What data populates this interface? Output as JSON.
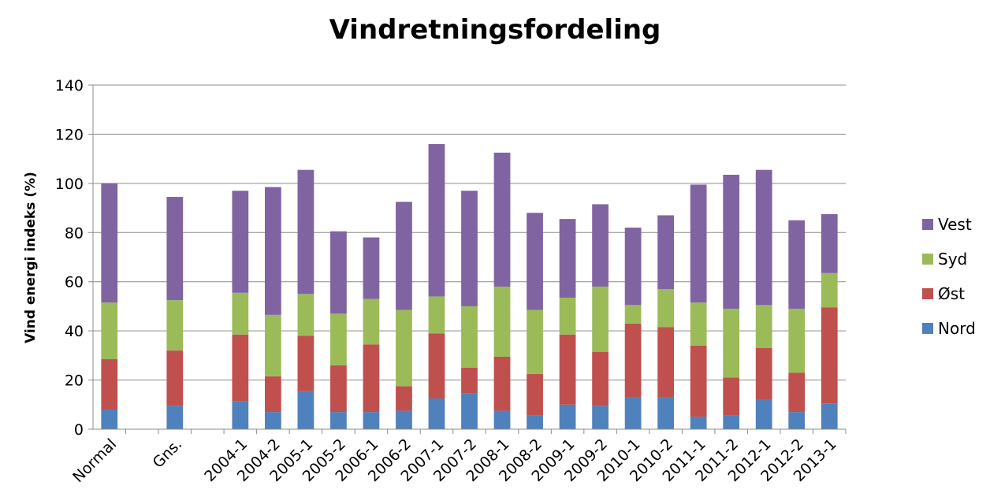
{
  "chart_data": {
    "type": "bar",
    "stacked": true,
    "title": "Vindretningsfordeling",
    "xlabel": "",
    "ylabel": "Vind energi indeks (%)",
    "ylim": [
      0,
      140
    ],
    "yticks": [
      0,
      20,
      40,
      60,
      80,
      100,
      120,
      140
    ],
    "grid": true,
    "legend_position": "right",
    "categories": [
      "Normal",
      "",
      "Gns.",
      "",
      "2004-1",
      "2004-2",
      "2005-1",
      "2005-2",
      "2006-1",
      "2006-2",
      "2007-1",
      "2007-2",
      "2008-1",
      "2008-2",
      "2009-1",
      "2009-2",
      "2010-1",
      "2010-2",
      "2011-1",
      "2011-2",
      "2012-1",
      "2012-2",
      "2013-1"
    ],
    "series": [
      {
        "name": "Nord",
        "color": "#4f81bd",
        "values": [
          8,
          null,
          9.5,
          null,
          11.5,
          7,
          15.5,
          7,
          7,
          7.5,
          12.5,
          14.5,
          7.5,
          5.5,
          10,
          9.5,
          13,
          13,
          5,
          5.5,
          12,
          7,
          10.5
        ]
      },
      {
        "name": "Øst",
        "color": "#c0504d",
        "values": [
          20.5,
          null,
          22.5,
          null,
          27,
          14.5,
          22.5,
          19,
          27.5,
          10,
          26.5,
          10.5,
          22,
          17,
          28.5,
          22,
          30,
          28.5,
          29,
          15.5,
          21,
          16,
          39
        ]
      },
      {
        "name": "Syd",
        "color": "#9bbb59",
        "values": [
          23,
          null,
          20.5,
          null,
          17,
          25,
          17,
          21,
          18.5,
          31,
          15,
          25,
          28.5,
          26,
          15,
          26.5,
          7.5,
          15.5,
          17.5,
          28,
          17.5,
          26,
          14
        ]
      },
      {
        "name": "Vest",
        "color": "#8064a2",
        "values": [
          48.5,
          null,
          42,
          null,
          41.5,
          52,
          50.5,
          33.5,
          25,
          44,
          62,
          47,
          54.5,
          39.5,
          32,
          33.5,
          31.5,
          30,
          48,
          54.5,
          55,
          36,
          24
        ]
      }
    ]
  }
}
